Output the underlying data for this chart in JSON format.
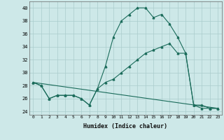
{
  "title": "",
  "xlabel": "Humidex (Indice chaleur)",
  "bg_color": "#cde8e8",
  "grid_color": "#aacccc",
  "line_color": "#1a6b5a",
  "xlim": [
    -0.5,
    23.5
  ],
  "ylim": [
    23.5,
    41.0
  ],
  "yticks": [
    24,
    26,
    28,
    30,
    32,
    34,
    36,
    38,
    40
  ],
  "xticks": [
    0,
    1,
    2,
    3,
    4,
    5,
    6,
    7,
    8,
    9,
    10,
    11,
    12,
    13,
    14,
    15,
    16,
    17,
    18,
    19,
    20,
    21,
    22,
    23
  ],
  "series1_x": [
    0,
    1,
    2,
    3,
    4,
    5,
    6,
    7,
    8,
    9,
    10,
    11,
    12,
    13,
    14,
    15,
    16,
    17,
    18,
    19,
    20,
    21,
    22,
    23
  ],
  "series1_y": [
    28.5,
    28.0,
    26.0,
    26.5,
    26.5,
    26.5,
    26.0,
    25.0,
    27.5,
    31.0,
    35.5,
    38.0,
    39.0,
    40.0,
    40.0,
    38.5,
    39.0,
    37.5,
    35.5,
    33.0,
    25.0,
    25.0,
    24.5,
    24.5
  ],
  "series2_x": [
    0,
    1,
    2,
    3,
    4,
    5,
    6,
    7,
    8,
    9,
    10,
    11,
    12,
    13,
    14,
    15,
    16,
    17,
    18,
    19,
    20,
    21,
    22,
    23
  ],
  "series2_y": [
    28.5,
    28.0,
    26.0,
    26.5,
    26.5,
    26.5,
    26.0,
    25.0,
    27.5,
    28.5,
    29.0,
    30.0,
    31.0,
    32.0,
    33.0,
    33.5,
    34.0,
    34.5,
    33.0,
    33.0,
    25.0,
    24.5,
    24.5,
    24.5
  ],
  "series3_x": [
    0,
    23
  ],
  "series3_y": [
    28.5,
    24.5
  ]
}
